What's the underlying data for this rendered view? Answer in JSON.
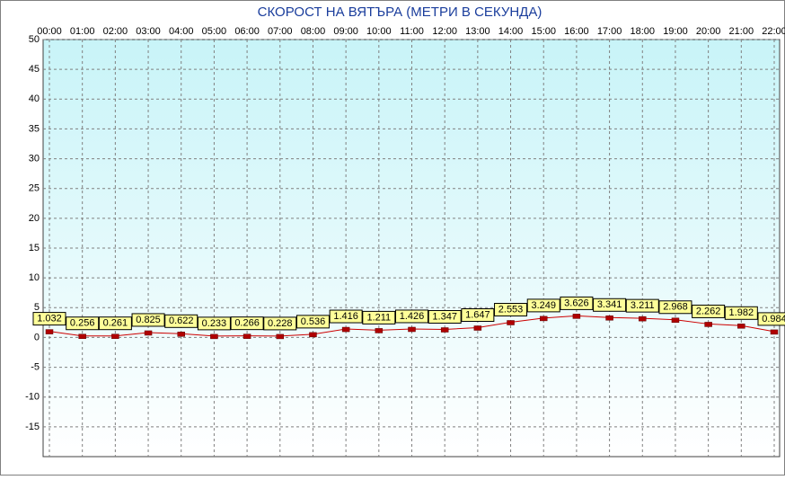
{
  "chart_data": {
    "type": "line",
    "title": "СКОРОСТ НА ВЯТЪРА (МЕТРИ В СЕКУНДА)",
    "categories": [
      "00:00",
      "01:00",
      "02:00",
      "03:00",
      "04:00",
      "05:00",
      "06:00",
      "07:00",
      "08:00",
      "09:00",
      "10:00",
      "11:00",
      "12:00",
      "13:00",
      "14:00",
      "15:00",
      "16:00",
      "17:00",
      "18:00",
      "19:00",
      "20:00",
      "21:00",
      "22:00"
    ],
    "values": [
      1.032,
      0.256,
      0.261,
      0.825,
      0.622,
      0.233,
      0.266,
      0.228,
      0.536,
      1.416,
      1.211,
      1.426,
      1.347,
      1.647,
      2.553,
      3.249,
      3.626,
      3.341,
      3.211,
      2.968,
      2.262,
      1.982,
      0.984
    ],
    "color": "#cc0000",
    "ylim": [
      -20,
      50
    ],
    "yticks": [
      50,
      45,
      40,
      35,
      30,
      25,
      20,
      15,
      10,
      5,
      0,
      -5,
      -10,
      -15
    ],
    "grid": true
  }
}
